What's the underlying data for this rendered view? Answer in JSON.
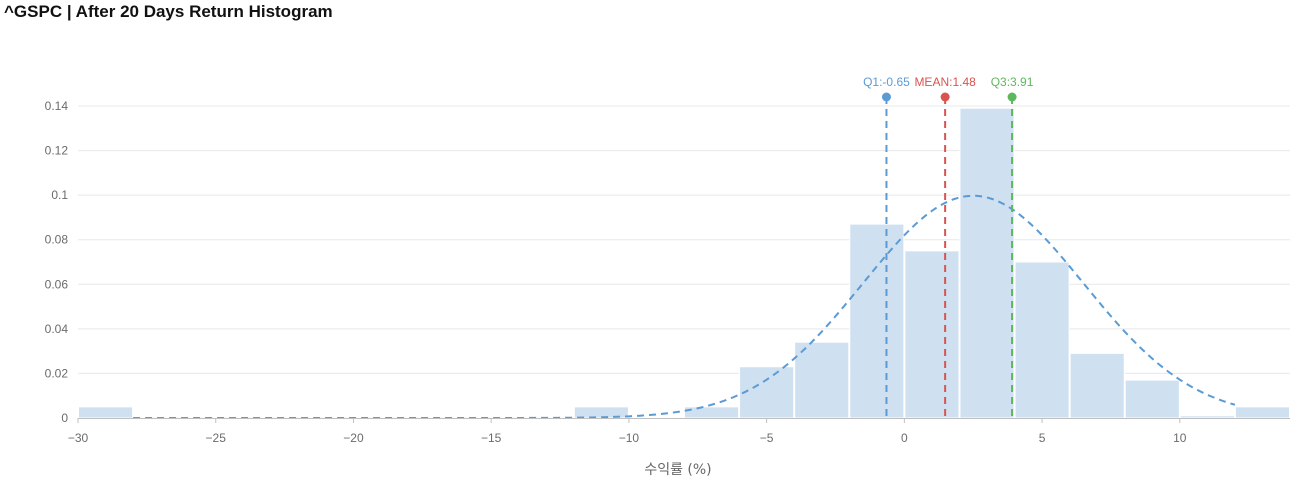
{
  "title": "^GSPC | After 20 Days Return Histogram",
  "colors": {
    "bar": "#cfe0f1",
    "bar_stroke": "#ffffff",
    "grid": "#e8e8e8",
    "normal_curve": "#5b9bd5",
    "q1": "#5b9bd5",
    "mean": "#d9534f",
    "q3": "#5cb85c"
  },
  "chart_data": {
    "type": "bar",
    "title": "^GSPC | After 20 Days Return Histogram",
    "xlabel": "수익률 (%)",
    "ylabel": "",
    "xlim": [
      -30,
      14
    ],
    "ylim": [
      0,
      0.14
    ],
    "grid": true,
    "xticks": [
      -30,
      -25,
      -20,
      -15,
      -10,
      -5,
      0,
      5,
      10
    ],
    "xtick_labels": [
      "−30",
      "−25",
      "−20",
      "−15",
      "−10",
      "−5",
      "0",
      "5",
      "10"
    ],
    "yticks": [
      0,
      0.02,
      0.04,
      0.06,
      0.08,
      0.1,
      0.12,
      0.14
    ],
    "ytick_labels": [
      "0",
      "0.02",
      "0.04",
      "0.06",
      "0.08",
      "0.1",
      "0.12",
      "0.14"
    ],
    "bin_width": 2,
    "bins": [
      {
        "start": -30,
        "value": 0.005
      },
      {
        "start": -12,
        "value": 0.005
      },
      {
        "start": -8,
        "value": 0.005
      },
      {
        "start": -6,
        "value": 0.023
      },
      {
        "start": -4,
        "value": 0.034
      },
      {
        "start": -2,
        "value": 0.087
      },
      {
        "start": 0,
        "value": 0.075
      },
      {
        "start": 2,
        "value": 0.139
      },
      {
        "start": 4,
        "value": 0.07
      },
      {
        "start": 6,
        "value": 0.029
      },
      {
        "start": 8,
        "value": 0.017
      },
      {
        "start": 10,
        "value": 0.001
      },
      {
        "start": 12,
        "value": 0.005
      }
    ],
    "normal_curve": {
      "mean": 2.5,
      "sd": 4.0,
      "x_range": [
        -28,
        12
      ]
    },
    "markers": [
      {
        "name": "q1",
        "label": "Q1:-0.65",
        "x": -0.65
      },
      {
        "name": "mean",
        "label": "MEAN:1.48",
        "x": 1.48
      },
      {
        "name": "q3",
        "label": "Q3:3.91",
        "x": 3.91
      }
    ]
  }
}
